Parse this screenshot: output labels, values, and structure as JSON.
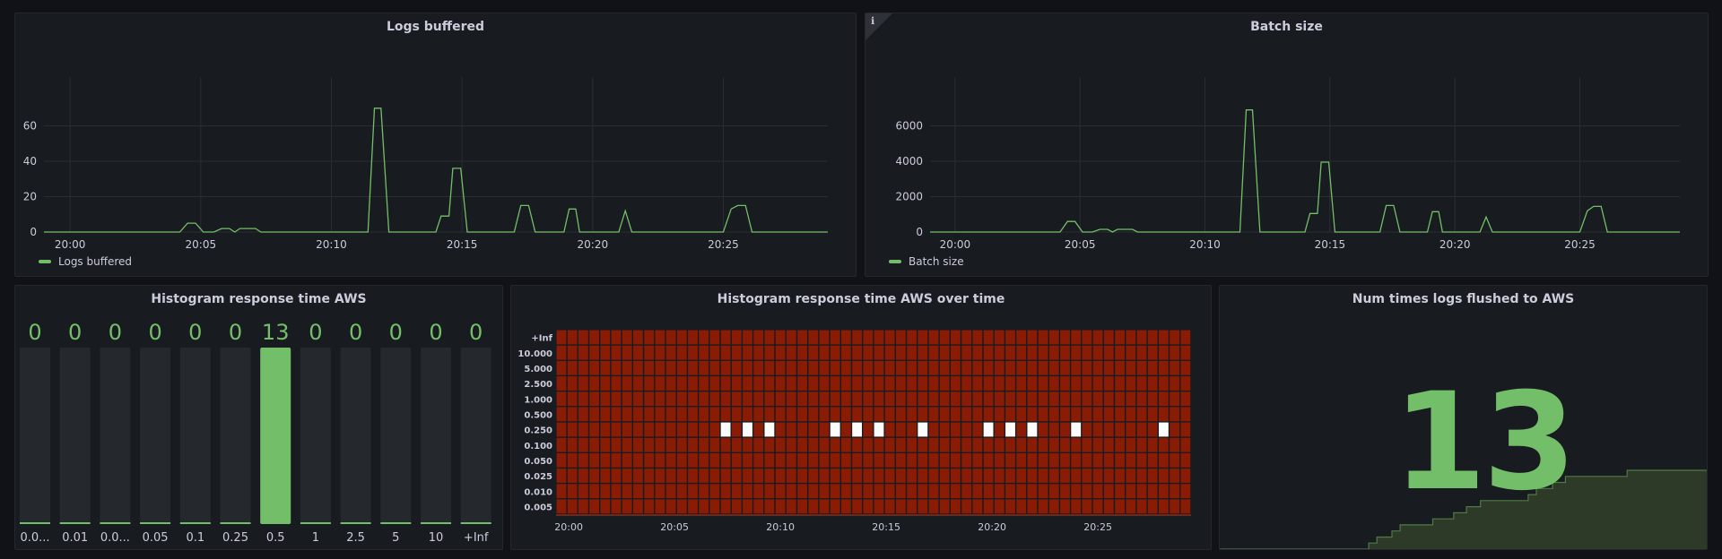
{
  "colors": {
    "accent": "#73bf69",
    "heat_cell": "#8a1c06",
    "heat_active": "#ffffff",
    "panel_bg": "#181b1f",
    "grid": "#2a2d33"
  },
  "time_labels": [
    "20:00",
    "20:05",
    "20:10",
    "20:15",
    "20:20",
    "20:25"
  ],
  "panels": {
    "logs_buffered": {
      "title": "Logs buffered",
      "legend": "Logs buffered"
    },
    "batch_size": {
      "title": "Batch size",
      "legend": "Batch size",
      "info_icon": "info-icon"
    },
    "histogram": {
      "title": "Histogram response time AWS"
    },
    "heatmap": {
      "title": "Histogram response time AWS over time"
    },
    "flushes": {
      "title": "Num times logs flushed to AWS",
      "value": "13"
    }
  },
  "chart_data": [
    {
      "type": "line",
      "title": "Logs buffered",
      "xlabel": "",
      "ylabel": "",
      "ylim": [
        0,
        80
      ],
      "yticks": [
        "0",
        "20",
        "40",
        "60"
      ],
      "xlim": [
        0,
        30
      ],
      "grid": true,
      "legend": "bottom-left",
      "series": [
        {
          "name": "Logs buffered",
          "points": [
            [
              0,
              0
            ],
            [
              5.2,
              0
            ],
            [
              5.5,
              5
            ],
            [
              5.8,
              5
            ],
            [
              6.1,
              0
            ],
            [
              6.5,
              0
            ],
            [
              6.8,
              2
            ],
            [
              7.1,
              2
            ],
            [
              7.3,
              0
            ],
            [
              7.5,
              2
            ],
            [
              8.1,
              2
            ],
            [
              8.3,
              0
            ],
            [
              12.4,
              0
            ],
            [
              12.65,
              70
            ],
            [
              12.9,
              70
            ],
            [
              13.2,
              0
            ],
            [
              15.0,
              0
            ],
            [
              15.2,
              9
            ],
            [
              15.5,
              9
            ],
            [
              15.65,
              36
            ],
            [
              15.95,
              36
            ],
            [
              16.2,
              0
            ],
            [
              18.0,
              0
            ],
            [
              18.25,
              15
            ],
            [
              18.55,
              15
            ],
            [
              18.8,
              0
            ],
            [
              19.9,
              0
            ],
            [
              20.1,
              13
            ],
            [
              20.35,
              13
            ],
            [
              20.5,
              0
            ],
            [
              22.0,
              0
            ],
            [
              22.25,
              12
            ],
            [
              22.5,
              0
            ],
            [
              26.0,
              0
            ],
            [
              26.3,
              13
            ],
            [
              26.55,
              15
            ],
            [
              26.85,
              15
            ],
            [
              27.1,
              0
            ],
            [
              30,
              0
            ]
          ]
        }
      ]
    },
    {
      "type": "line",
      "title": "Batch size",
      "xlabel": "",
      "ylabel": "",
      "ylim": [
        0,
        8000
      ],
      "yticks": [
        "0",
        "2000",
        "4000",
        "6000"
      ],
      "xlim": [
        0,
        30
      ],
      "grid": true,
      "legend": "bottom-left",
      "series": [
        {
          "name": "Batch size",
          "points": [
            [
              0,
              0
            ],
            [
              5.2,
              0
            ],
            [
              5.5,
              600
            ],
            [
              5.8,
              600
            ],
            [
              6.1,
              0
            ],
            [
              6.5,
              0
            ],
            [
              6.8,
              150
            ],
            [
              7.1,
              150
            ],
            [
              7.3,
              0
            ],
            [
              7.5,
              150
            ],
            [
              8.1,
              150
            ],
            [
              8.3,
              0
            ],
            [
              12.4,
              0
            ],
            [
              12.65,
              6900
            ],
            [
              12.9,
              6900
            ],
            [
              13.2,
              0
            ],
            [
              15.0,
              0
            ],
            [
              15.2,
              1050
            ],
            [
              15.5,
              1050
            ],
            [
              15.65,
              3950
            ],
            [
              15.95,
              3950
            ],
            [
              16.2,
              0
            ],
            [
              18.0,
              0
            ],
            [
              18.25,
              1500
            ],
            [
              18.55,
              1500
            ],
            [
              18.8,
              0
            ],
            [
              19.9,
              0
            ],
            [
              20.1,
              1150
            ],
            [
              20.35,
              1150
            ],
            [
              20.5,
              0
            ],
            [
              22.0,
              0
            ],
            [
              22.25,
              850
            ],
            [
              22.5,
              0
            ],
            [
              26.0,
              0
            ],
            [
              26.3,
              1200
            ],
            [
              26.55,
              1450
            ],
            [
              26.85,
              1450
            ],
            [
              27.1,
              0
            ],
            [
              30,
              0
            ]
          ]
        }
      ]
    },
    {
      "type": "bar",
      "title": "Histogram response time AWS",
      "categories": [
        "0.0...",
        "0.01",
        "0.0...",
        "0.05",
        "0.1",
        "0.25",
        "0.5",
        "1",
        "2.5",
        "5",
        "10",
        "+Inf"
      ],
      "values": [
        0,
        0,
        0,
        0,
        0,
        0,
        13,
        0,
        0,
        0,
        0,
        0
      ],
      "ylim": [
        0,
        13
      ]
    },
    {
      "type": "heatmap",
      "title": "Histogram response time AWS over time",
      "y_buckets": [
        "+Inf",
        "10.000",
        "5.000",
        "2.500",
        "1.000",
        "0.500",
        "0.250",
        "0.100",
        "0.050",
        "0.025",
        "0.010",
        "0.005"
      ],
      "x_labels": [
        "20:00",
        "20:05",
        "20:10",
        "20:15",
        "20:20",
        "20:25"
      ],
      "columns": 58,
      "active_row_label": "0.250",
      "active_columns": [
        15,
        17,
        19,
        25,
        27,
        29,
        33,
        39,
        41,
        43,
        47,
        55
      ]
    },
    {
      "type": "area",
      "title": "Num times logs flushed to AWS",
      "value": 13,
      "ylim": [
        0,
        13
      ],
      "steps": [
        [
          0,
          0
        ],
        [
          11.5,
          0
        ],
        [
          12.8,
          1
        ],
        [
          13.5,
          2
        ],
        [
          14.8,
          3
        ],
        [
          15.5,
          4
        ],
        [
          18.3,
          5
        ],
        [
          20.1,
          6
        ],
        [
          21.2,
          7
        ],
        [
          22.4,
          8
        ],
        [
          26.5,
          9
        ],
        [
          27.2,
          10
        ],
        [
          28.6,
          11
        ],
        [
          29.7,
          12
        ],
        [
          35,
          13
        ],
        [
          42,
          13
        ]
      ]
    }
  ]
}
